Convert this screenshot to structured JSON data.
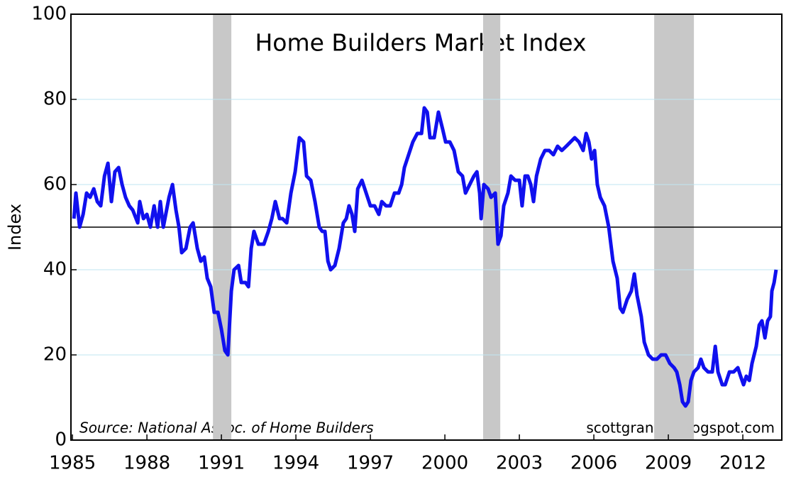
{
  "chart_data": {
    "type": "line",
    "title": "Home Builders Market Index",
    "y_label": "Index",
    "source": "Source: National Assoc. of Home Builders",
    "credit": "scottgrannis.blogspot.com",
    "color": "#1010ee",
    "grid": true,
    "reference_line": 50,
    "recessions": [
      [
        1990.66,
        1991.4
      ],
      [
        2001.54,
        2002.23
      ],
      [
        2008.43,
        2010.03
      ]
    ],
    "xlim": [
      1984.94,
      2013.57
    ],
    "xticks": [
      1985,
      1988,
      1991,
      1994,
      1997,
      2000,
      2003,
      2006,
      2009,
      2012
    ],
    "ylim": [
      0,
      100
    ],
    "yticks": [
      0,
      20,
      40,
      60,
      80,
      100
    ],
    "x": [
      1985.06,
      1985.14,
      1985.29,
      1985.43,
      1985.57,
      1985.71,
      1985.86,
      1986.0,
      1986.14,
      1986.29,
      1986.43,
      1986.57,
      1986.71,
      1986.86,
      1987.0,
      1987.14,
      1987.29,
      1987.43,
      1987.63,
      1987.71,
      1987.86,
      1988.0,
      1988.14,
      1988.29,
      1988.43,
      1988.54,
      1988.66,
      1988.89,
      1989.03,
      1989.17,
      1989.29,
      1989.4,
      1989.57,
      1989.74,
      1989.86,
      1990.03,
      1990.17,
      1990.31,
      1990.43,
      1990.57,
      1990.71,
      1990.86,
      1991.0,
      1991.14,
      1991.26,
      1991.4,
      1991.51,
      1991.69,
      1991.8,
      1991.97,
      1992.09,
      1992.2,
      1992.31,
      1992.49,
      1992.71,
      1992.89,
      1993.03,
      1993.17,
      1993.34,
      1993.46,
      1993.63,
      1993.8,
      1993.97,
      1994.14,
      1994.31,
      1994.43,
      1994.6,
      1994.77,
      1994.94,
      1995.06,
      1995.17,
      1995.29,
      1995.4,
      1995.57,
      1995.74,
      1995.91,
      1996.03,
      1996.14,
      1996.26,
      1996.37,
      1996.49,
      1996.66,
      1996.83,
      1997.0,
      1997.17,
      1997.34,
      1997.46,
      1997.63,
      1997.8,
      1997.97,
      1998.14,
      1998.26,
      1998.37,
      1998.54,
      1998.71,
      1998.89,
      1999.06,
      1999.17,
      1999.29,
      1999.4,
      1999.57,
      1999.74,
      1999.91,
      2000.03,
      2000.2,
      2000.37,
      2000.54,
      2000.71,
      2000.83,
      2001.0,
      2001.17,
      2001.29,
      2001.4,
      2001.46,
      2001.57,
      2001.74,
      2001.86,
      2002.03,
      2002.14,
      2002.26,
      2002.37,
      2002.54,
      2002.66,
      2002.83,
      2003.0,
      2003.11,
      2003.23,
      2003.34,
      2003.46,
      2003.57,
      2003.69,
      2003.86,
      2004.03,
      2004.2,
      2004.37,
      2004.54,
      2004.71,
      2004.89,
      2005.06,
      2005.23,
      2005.4,
      2005.57,
      2005.69,
      2005.8,
      2005.91,
      2006.03,
      2006.14,
      2006.26,
      2006.43,
      2006.6,
      2006.77,
      2006.94,
      2007.06,
      2007.17,
      2007.34,
      2007.51,
      2007.63,
      2007.74,
      2007.91,
      2008.03,
      2008.2,
      2008.37,
      2008.54,
      2008.71,
      2008.89,
      2009.06,
      2009.23,
      2009.34,
      2009.46,
      2009.57,
      2009.69,
      2009.8,
      2009.91,
      2010.03,
      2010.2,
      2010.31,
      2010.43,
      2010.6,
      2010.77,
      2010.89,
      2011.0,
      2011.17,
      2011.29,
      2011.46,
      2011.63,
      2011.8,
      2011.91,
      2012.03,
      2012.14,
      2012.26,
      2012.37,
      2012.54,
      2012.66,
      2012.77,
      2012.89,
      2013.0,
      2013.11,
      2013.17,
      2013.26,
      2013.34
    ],
    "values": [
      52,
      58,
      50,
      53,
      58,
      57,
      59,
      56,
      55,
      62,
      65,
      56,
      63,
      64,
      60,
      57,
      55,
      54,
      51,
      56,
      52,
      53,
      50,
      55,
      50,
      56,
      50,
      57,
      60,
      54,
      50,
      44,
      45,
      50,
      51,
      45,
      42,
      43,
      38,
      36,
      30,
      30,
      26,
      21,
      20,
      35,
      40,
      41,
      37,
      37,
      36,
      45,
      49,
      46,
      46,
      49,
      52,
      56,
      52,
      52,
      51,
      58,
      63,
      71,
      70,
      62,
      61,
      56,
      50,
      49,
      49,
      42,
      40,
      41,
      45,
      51,
      52,
      55,
      53,
      49,
      59,
      61,
      58,
      55,
      55,
      53,
      56,
      55,
      55,
      58,
      58,
      60,
      64,
      67,
      70,
      72,
      72,
      78,
      77,
      71,
      71,
      77,
      73,
      70,
      70,
      68,
      63,
      62,
      58,
      60,
      62,
      63,
      58,
      52,
      60,
      59,
      57,
      58,
      46,
      48,
      55,
      58,
      62,
      61,
      61,
      55,
      62,
      62,
      60,
      56,
      62,
      66,
      68,
      68,
      67,
      69,
      68,
      69,
      70,
      71,
      70,
      68,
      72,
      70,
      66,
      68,
      60,
      57,
      55,
      50,
      42,
      38,
      31,
      30,
      33,
      35,
      39,
      34,
      29,
      23,
      20,
      19,
      19,
      20,
      20,
      18,
      17,
      16,
      13,
      9,
      8,
      9,
      14,
      16,
      17,
      19,
      17,
      16,
      16,
      22,
      16,
      13,
      13,
      16,
      16,
      17,
      15,
      13,
      15,
      14,
      18,
      22,
      27,
      28,
      24,
      28,
      29,
      35,
      37,
      40
    ]
  }
}
